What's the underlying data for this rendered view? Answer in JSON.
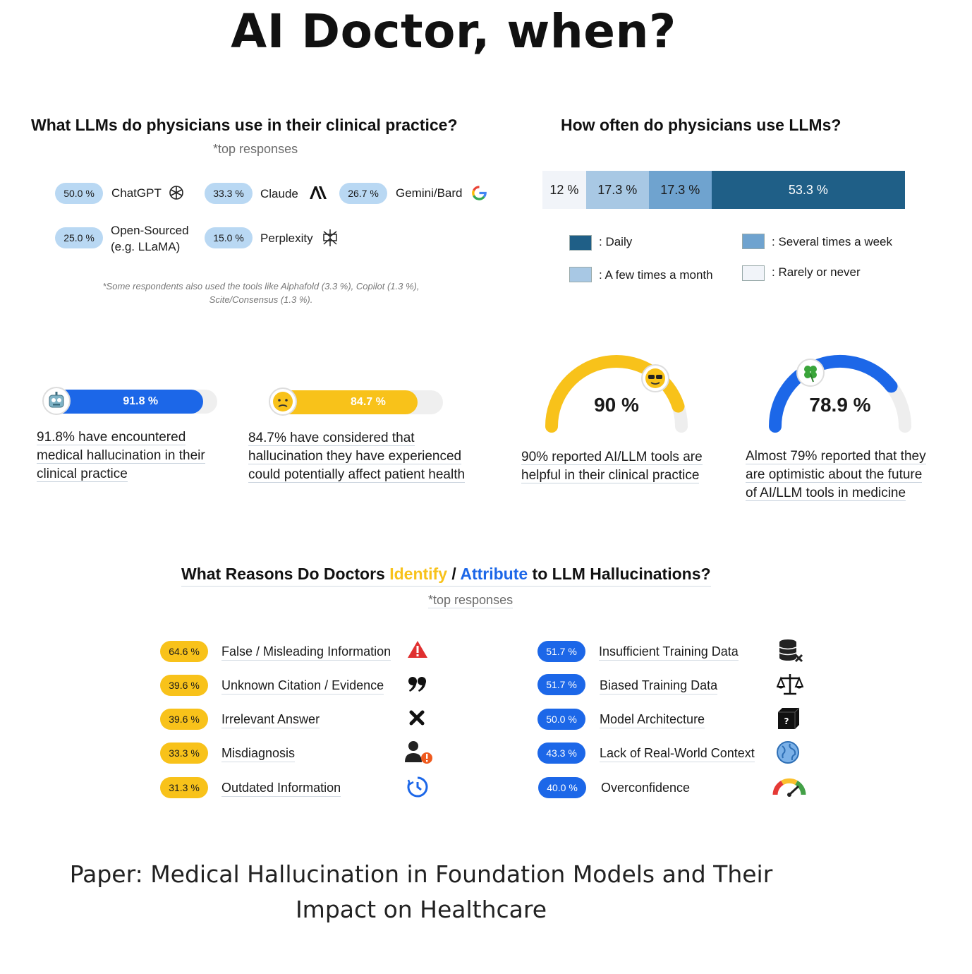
{
  "title": "AI Doctor, when?",
  "llm_section": {
    "title": "What LLMs do physicians use in their clinical practice?",
    "subtitle": "*top responses",
    "items": [
      {
        "value": "50.0 %",
        "label": "ChatGPT",
        "icon": "openai-logo-icon"
      },
      {
        "value": "33.3 %",
        "label": "Claude",
        "icon": "anthropic-logo-icon"
      },
      {
        "value": "26.7 %",
        "label": "Gemini/Bard",
        "icon": "google-logo-icon"
      },
      {
        "value": "25.0 %",
        "label_line1": "Open-Sourced",
        "label_line2": "(e.g. LLaMA)"
      },
      {
        "value": "15.0 %",
        "label": "Perplexity",
        "icon": "perplexity-logo-icon"
      }
    ],
    "note_line1": "*Some respondents also used the tools like Alphafold (3.3 %), Copilot (1.3 %),",
    "note_line2": "Scite/Consensus (1.3 %)."
  },
  "frequency_section": {
    "title": "How often do physicians use LLMs?",
    "legend": {
      "daily": ": Daily",
      "several": ": Several times a week",
      "few": ": A few times a month",
      "rarely": ": Rarely or never"
    },
    "colors": {
      "rarely": "#f1f4f9",
      "few": "#a8c8e4",
      "several": "#6fa3cf",
      "daily": "#1f5f87"
    }
  },
  "chart_data": [
    {
      "type": "bar",
      "subtype": "stacked-horizontal",
      "title": "How often do physicians use LLMs?",
      "series": [
        {
          "name": "Rarely or never",
          "value": 12,
          "label": "12 %"
        },
        {
          "name": "A few times a month",
          "value": 17.3,
          "label": "17.3 %"
        },
        {
          "name": "Several times a week",
          "value": 17.3,
          "label": "17.3 %"
        },
        {
          "name": "Daily",
          "value": 53.3,
          "label": "53.3 %"
        }
      ]
    },
    {
      "type": "bar",
      "title": "What LLMs do physicians use in their clinical practice?",
      "categories": [
        "ChatGPT",
        "Claude",
        "Gemini/Bard",
        "Open-Sourced (e.g. LLaMA)",
        "Perplexity"
      ],
      "values": [
        50.0,
        33.3,
        26.7,
        25.0,
        15.0
      ]
    },
    {
      "type": "bar",
      "title": "What Reasons Do Doctors Identify / Attribute to LLM Hallucinations?",
      "categories": [
        "False / Misleading Information",
        "Unknown Citation / Evidence",
        "Irrelevant Answer",
        "Misdiagnosis",
        "Outdated Information",
        "Insufficient Training Data",
        "Biased Training Data",
        "Model Architecture",
        "Lack of Real-World Context",
        "Overconfidence"
      ],
      "values": [
        64.6,
        39.6,
        39.6,
        33.3,
        31.3,
        51.7,
        51.7,
        50.0,
        43.3,
        40.0
      ]
    }
  ],
  "stats": {
    "hallucination": {
      "value": 91.8,
      "label": "91.8 %",
      "color": "#1c67e8",
      "lines": [
        "91.8% have encountered",
        "medical hallucination in their",
        "clinical practice"
      ]
    },
    "health": {
      "value": 84.7,
      "label": "84.7 %",
      "color": "#f8c21a",
      "lines": [
        "84.7% have considered that",
        "hallucination they have experienced",
        "could potentially affect patient health"
      ]
    },
    "helpful": {
      "value": 90,
      "label": "90 %",
      "color": "#f8c21a",
      "lines": [
        "90% reported AI/LLM tools are",
        "helpful in their clinical practice"
      ]
    },
    "optimistic": {
      "value": 78.9,
      "label": "78.9 %",
      "color": "#1c67e8",
      "lines": [
        "Almost 79% reported that they",
        "are optimistic about the future",
        "of AI/LLM tools in medicine"
      ]
    }
  },
  "reasons_section": {
    "title_part1": "What Reasons Do Doctors ",
    "title_identify": "Identify",
    "title_slash": " / ",
    "title_attribute": "Attribute",
    "title_part2": " to LLM Hallucinations?",
    "subtitle": "*top responses",
    "identify": [
      {
        "value": "64.6 %",
        "label": "False / Misleading Information",
        "icon": "warning-icon"
      },
      {
        "value": "39.6 %",
        "label": "Unknown Citation / Evidence",
        "icon": "quote-icon"
      },
      {
        "value": "39.6 %",
        "label": "Irrelevant Answer",
        "icon": "cross-icon"
      },
      {
        "value": "33.3 %",
        "label": "Misdiagnosis",
        "icon": "person-alert-icon"
      },
      {
        "value": "31.3 %",
        "label": "Outdated Information",
        "icon": "clock-icon"
      }
    ],
    "attribute": [
      {
        "value": "51.7 %",
        "label": "Insufficient Training Data",
        "icon": "database-x-icon"
      },
      {
        "value": "51.7 %",
        "label": "Biased Training Data",
        "icon": "scales-icon"
      },
      {
        "value": "50.0 %",
        "label": "Model Architecture",
        "icon": "black-box-icon"
      },
      {
        "value": "43.3 %",
        "label": "Lack of Real-World Context",
        "icon": "globe-icon"
      },
      {
        "value": "40.0 %",
        "label": "Overconfidence",
        "icon": "gauge-icon"
      }
    ]
  },
  "footer": {
    "line1": "Paper: Medical Hallucination in Foundation Models and Their",
    "line2": "Impact on Healthcare"
  }
}
